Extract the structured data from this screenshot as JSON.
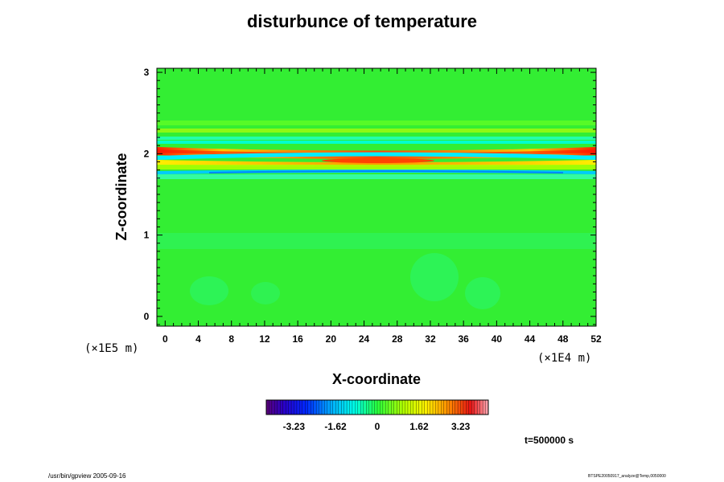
{
  "chart_data": {
    "type": "heatmap",
    "title": "disturbunce of temperature",
    "xlabel": "X-coordinate",
    "ylabel": "Z-coordinate",
    "x_unit": "(×1E4 m)",
    "z_unit": "(×1E5 m)",
    "x_ticks": [
      "0",
      "4",
      "8",
      "12",
      "16",
      "20",
      "24",
      "28",
      "32",
      "36",
      "40",
      "44",
      "48",
      "52"
    ],
    "z_ticks": [
      "0",
      "1",
      "2",
      "3"
    ],
    "xlim": [
      -1,
      52
    ],
    "zlim": [
      -0.12,
      3.05
    ],
    "grid": false,
    "colorbar": {
      "ticks": [
        "-3.23",
        "-1.62",
        "0",
        "1.62",
        "3.23"
      ],
      "tick_values": [
        -3.23,
        -1.62,
        0,
        1.62,
        3.23
      ],
      "range": [
        -4.3,
        4.3
      ],
      "colormap": "rainbow"
    },
    "field_summary": {
      "background_value": 0.0,
      "disturbance_layer_z": [
        1.75,
        2.25
      ],
      "max_positive": 3.5,
      "max_negative": -1.6
    }
  },
  "time_label": "t=500000 s",
  "footer_left": "/usr/bin/gpview 2005-09-16",
  "footer_right": "BTSPE20050917_analyze@Temp,0050000",
  "colors": {
    "background_field": "#33ee33",
    "axis": "#000000"
  }
}
